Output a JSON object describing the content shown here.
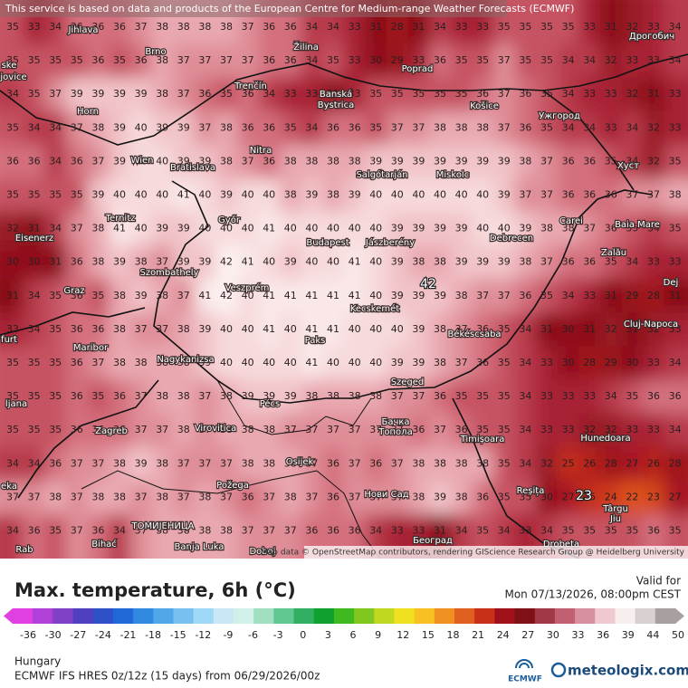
{
  "map": {
    "banner": "This service is based on data and products of the European Centre for Medium-range Weather Forecasts (ECMWF)",
    "attribution": "Map data © OpenStreetMap contributors, rendering GIScience Research Group @ Heidelberg University",
    "grid": [
      [
        35,
        33,
        34,
        36,
        36,
        36,
        37,
        38,
        38,
        38,
        38,
        37,
        36,
        36,
        34,
        34,
        33,
        31,
        28,
        31,
        34,
        33,
        33,
        35,
        35,
        35,
        35,
        33,
        31,
        32,
        33,
        34
      ],
      [
        35,
        35,
        35,
        35,
        36,
        35,
        36,
        38,
        37,
        37,
        37,
        37,
        36,
        36,
        34,
        35,
        33,
        30,
        29,
        33,
        36,
        35,
        35,
        37,
        35,
        35,
        34,
        34,
        32,
        33,
        33,
        34
      ],
      [
        34,
        35,
        37,
        39,
        39,
        39,
        39,
        38,
        37,
        36,
        35,
        36,
        34,
        33,
        33,
        31,
        33,
        35,
        35,
        35,
        35,
        35,
        36,
        37,
        36,
        35,
        34,
        33,
        33,
        32,
        31,
        33
      ],
      [
        35,
        34,
        34,
        37,
        38,
        39,
        40,
        39,
        39,
        37,
        38,
        36,
        36,
        35,
        34,
        36,
        36,
        35,
        37,
        37,
        38,
        38,
        38,
        37,
        36,
        35,
        34,
        34,
        33,
        34,
        32,
        33
      ],
      [
        36,
        36,
        34,
        36,
        37,
        39,
        40,
        40,
        39,
        39,
        38,
        37,
        36,
        38,
        38,
        38,
        38,
        39,
        39,
        39,
        39,
        39,
        39,
        39,
        38,
        37,
        36,
        36,
        35,
        34,
        32,
        35
      ],
      [
        35,
        35,
        35,
        35,
        39,
        40,
        40,
        40,
        41,
        40,
        39,
        40,
        40,
        38,
        39,
        38,
        39,
        40,
        40,
        40,
        40,
        40,
        40,
        39,
        37,
        37,
        36,
        36,
        36,
        37,
        37,
        38
      ],
      [
        32,
        31,
        34,
        37,
        38,
        41,
        40,
        39,
        39,
        40,
        40,
        40,
        41,
        40,
        40,
        40,
        40,
        40,
        39,
        39,
        39,
        39,
        40,
        40,
        39,
        38,
        38,
        37,
        36,
        35,
        34,
        35
      ],
      [
        30,
        30,
        31,
        36,
        38,
        39,
        38,
        37,
        39,
        39,
        42,
        41,
        40,
        39,
        40,
        40,
        41,
        40,
        39,
        38,
        38,
        39,
        39,
        39,
        38,
        37,
        36,
        36,
        35,
        34,
        33,
        33
      ],
      [
        31,
        34,
        35,
        36,
        35,
        38,
        39,
        38,
        37,
        41,
        42,
        40,
        41,
        41,
        41,
        41,
        41,
        40,
        39,
        39,
        39,
        38,
        37,
        37,
        36,
        35,
        34,
        33,
        31,
        29,
        28,
        31
      ],
      [
        33,
        34,
        35,
        36,
        36,
        38,
        37,
        37,
        38,
        39,
        40,
        40,
        41,
        40,
        41,
        41,
        40,
        40,
        40,
        39,
        38,
        37,
        36,
        35,
        34,
        31,
        30,
        31,
        32,
        31,
        32,
        33
      ],
      [
        35,
        35,
        35,
        36,
        37,
        38,
        38,
        38,
        38,
        39,
        40,
        40,
        40,
        40,
        41,
        40,
        40,
        40,
        39,
        39,
        38,
        37,
        36,
        35,
        34,
        33,
        30,
        28,
        29,
        30,
        33,
        34
      ],
      [
        35,
        35,
        35,
        36,
        35,
        36,
        37,
        38,
        38,
        37,
        38,
        39,
        39,
        39,
        38,
        38,
        38,
        38,
        37,
        37,
        36,
        35,
        35,
        35,
        34,
        33,
        33,
        33,
        34,
        35,
        36,
        36
      ],
      [
        35,
        35,
        35,
        36,
        36,
        36,
        37,
        37,
        38,
        37,
        38,
        38,
        38,
        37,
        37,
        37,
        37,
        37,
        37,
        36,
        37,
        36,
        35,
        35,
        34,
        33,
        33,
        32,
        32,
        33,
        33,
        34
      ],
      [
        34,
        34,
        36,
        37,
        37,
        38,
        39,
        38,
        37,
        37,
        37,
        38,
        38,
        38,
        37,
        36,
        37,
        36,
        37,
        38,
        38,
        38,
        38,
        35,
        34,
        32,
        25,
        26,
        28,
        27,
        26,
        28
      ],
      [
        37,
        37,
        38,
        37,
        38,
        38,
        37,
        38,
        37,
        38,
        37,
        36,
        37,
        38,
        37,
        36,
        37,
        37,
        37,
        38,
        39,
        38,
        36,
        35,
        35,
        30,
        27,
        25,
        24,
        22,
        23,
        27
      ],
      [
        34,
        36,
        35,
        37,
        36,
        34,
        37,
        38,
        38,
        38,
        38,
        37,
        37,
        37,
        36,
        36,
        36,
        34,
        33,
        33,
        31,
        34,
        35,
        34,
        33,
        34,
        35,
        35,
        35,
        35,
        36,
        35
      ]
    ],
    "extremes": [
      "42",
      "23"
    ],
    "places": [
      "Jihlava",
      "Brno",
      "Žilina",
      "Poprad",
      "Дрогобич",
      "Trenčín",
      "Banská",
      "Bystrica",
      "Košice",
      "Ужгород",
      "Horn",
      "Nitra",
      "Wien",
      "Bratislava",
      "Salgótarján",
      "Miskolc",
      "Хуст",
      "Ternitz",
      "Győr",
      "Budapest",
      "Jászberény",
      "Debrecen",
      "Carei",
      "Baia Mare",
      "Eisenerz",
      "Szombathely",
      "Zalău",
      "Graz",
      "Veszprém",
      "Kecskemét",
      "Dej",
      "Cluj-Napoca",
      "Maribor",
      "Paks",
      "Békéscsaba",
      "Nagykanizsa",
      "Szeged",
      "Zagreb",
      "Virovitica",
      "Pécs",
      "Бачка",
      "Топола",
      "Timișoara",
      "Hunedoara",
      "Osijek",
      "Požega",
      "Нови Сад",
      "Reșița",
      "Târgu",
      "Jiu",
      "ТОМИЈЕНИЦА",
      "ljana",
      "Rab",
      "Bihać",
      "Banja Luka",
      "Doboj",
      "Београд",
      "Drobeta",
      "eka",
      "furt",
      "jovice",
      "ske"
    ]
  },
  "footer": {
    "title": "Max. temperature, 6h (°C)",
    "valid_label": "Valid for",
    "valid_time": "Mon 07/13/2026, 08:00pm CEST",
    "colorbar_ticks": [
      -36,
      -30,
      -27,
      -24,
      -21,
      -18,
      -15,
      -12,
      -9,
      -6,
      -3,
      0,
      3,
      6,
      9,
      12,
      15,
      18,
      21,
      24,
      27,
      30,
      33,
      36,
      39,
      44,
      50
    ],
    "colorbar_colors": [
      "#e040e0",
      "#b040d8",
      "#8040c8",
      "#5040c0",
      "#3050c8",
      "#2068d8",
      "#3088e0",
      "#50a8e8",
      "#78c0f0",
      "#a0d8f8",
      "#c8e8f8",
      "#d0f0e8",
      "#a0e0c0",
      "#60c890",
      "#30b060",
      "#10a030",
      "#40b820",
      "#80c820",
      "#c0d820",
      "#f0e020",
      "#f8c020",
      "#f09020",
      "#e06020",
      "#c83018",
      "#a01018",
      "#801018",
      "#a03848",
      "#c06070",
      "#d890a0",
      "#f0c8d0",
      "#f8eeee",
      "#d8d0d0",
      "#a8a0a0"
    ],
    "region": "Hungary",
    "model": "ECMWF IFS HRES 0z/12z (15 days) from 06/29/2026/00z",
    "ecmwf": "ECMWF",
    "brand": "meteologix.com"
  }
}
